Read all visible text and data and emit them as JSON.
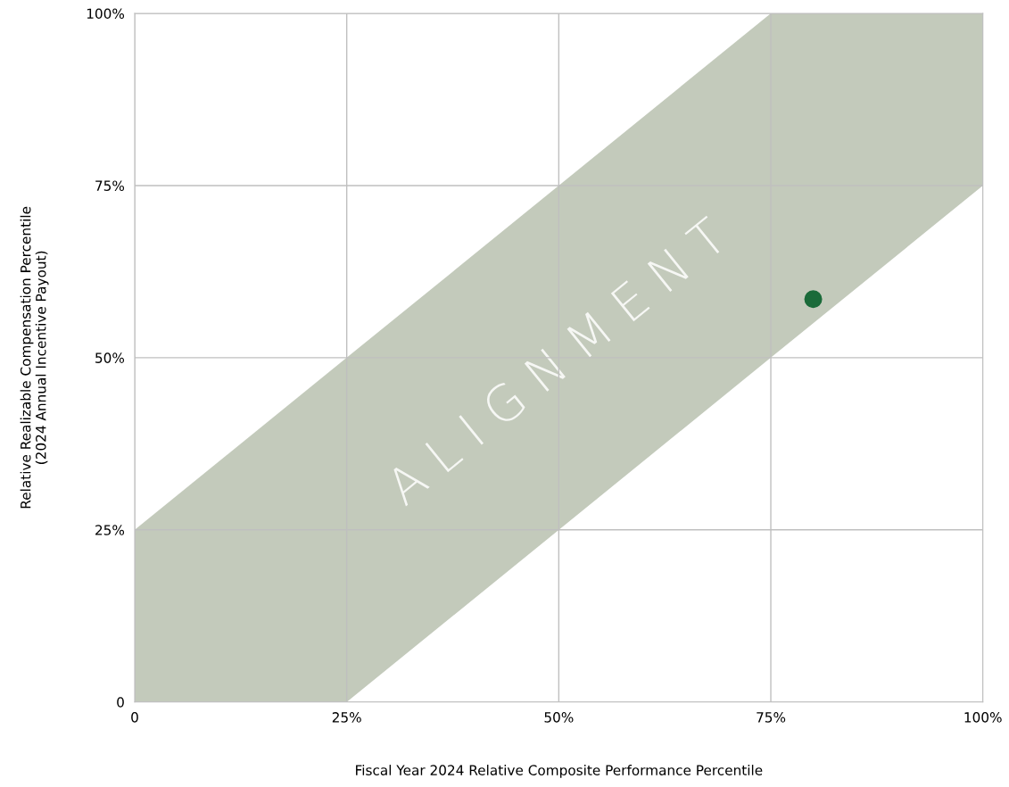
{
  "chart_data": {
    "type": "scatter",
    "xlabel": "Fiscal Year 2024 Relative Composite Performance Percentile",
    "ylabel": "Relative Realizable Compensation Percentile\n(2024 Annual Incentive Payout)",
    "series": [
      {
        "type": "area",
        "color": "#c3cabb",
        "x": [
          0,
          25,
          75,
          100
        ],
        "values": [
          25,
          50,
          100,
          100
        ],
        "marker": "none"
      },
      {
        "type": "area",
        "color": "#ffffff",
        "x": [
          0,
          25,
          75,
          100
        ],
        "values": [
          0,
          0,
          50,
          75
        ],
        "marker": "none"
      },
      {
        "color": "#1b6b3a",
        "x": [
          80
        ],
        "values": [
          58.5
        ]
      }
    ],
    "annotations": [
      "A L I G N M E N T"
    ],
    "xlim": [
      0,
      100
    ],
    "ylim": [
      0,
      100
    ],
    "xticks": [
      0,
      {
        "value": 25,
        "label": "25%"
      },
      {
        "value": 50,
        "label": "50%"
      },
      {
        "value": 75,
        "label": "75%"
      },
      {
        "value": 100,
        "label": "100%"
      }
    ],
    "yticks": [
      0,
      {
        "value": 25,
        "label": "25%"
      },
      {
        "value": 50,
        "label": "50%"
      },
      {
        "value": 75,
        "label": "75%"
      },
      {
        "value": 100,
        "label": "100%"
      }
    ],
    "grid": true,
    "marker": "circle"
  }
}
